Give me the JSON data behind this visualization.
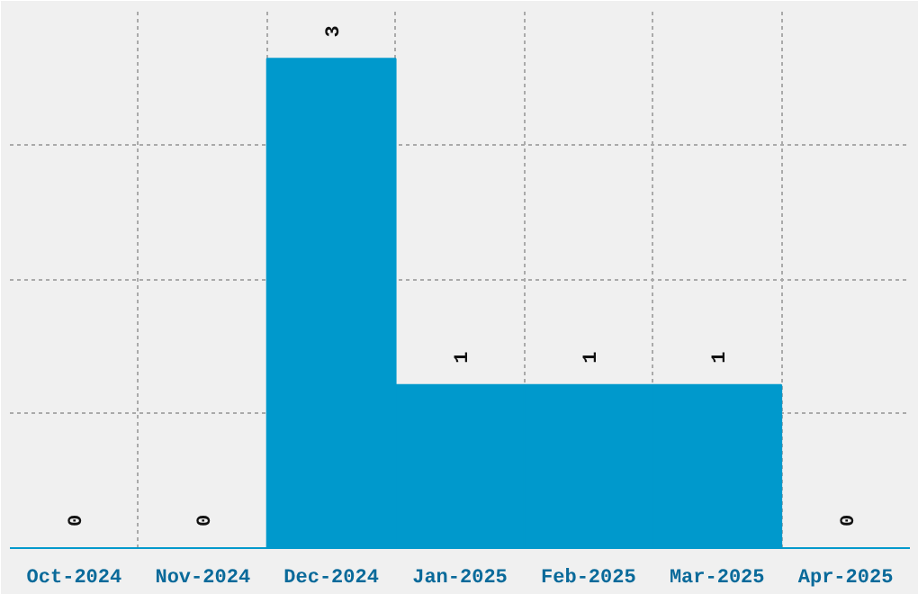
{
  "chart_data": {
    "type": "bar",
    "categories": [
      "Oct-2024",
      "Nov-2024",
      "Dec-2024",
      "Jan-2025",
      "Feb-2025",
      "Mar-2025",
      "Apr-2025"
    ],
    "values": [
      0,
      0,
      3,
      1,
      1,
      1,
      0
    ],
    "color": "#0099cc",
    "data_labels": true,
    "grid": true,
    "tick_labels": "x",
    "ylim": [
      0,
      3.3
    ],
    "yticks": [
      {
        "value": 0.825,
        "label": null
      },
      {
        "value": 1.65,
        "label": null
      },
      {
        "value": 2.475,
        "label": null
      }
    ]
  }
}
